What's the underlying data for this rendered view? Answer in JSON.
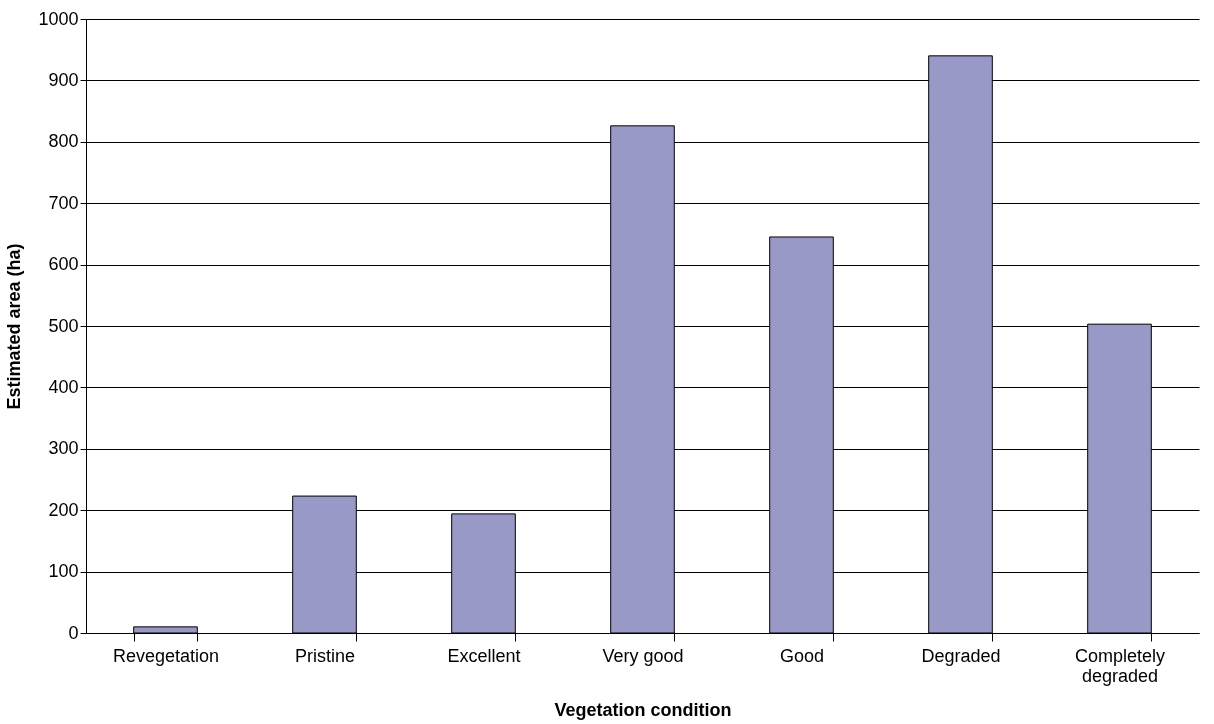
{
  "chart_data": {
    "type": "bar",
    "xlabel": "Vegetation condition",
    "ylabel": "Estimated area (ha)",
    "categories": [
      "Revegetation",
      "Pristine",
      "Excellent",
      "Very good",
      "Good",
      "Degraded",
      "Completely degraded"
    ],
    "values": [
      10,
      223,
      194,
      826,
      645,
      940,
      503
    ],
    "color": "#9999c8",
    "ylim": [
      0,
      1000
    ],
    "yticks": [
      0,
      100,
      200,
      300,
      400,
      500,
      600,
      700,
      800,
      900,
      1000
    ],
    "grid": "y"
  }
}
